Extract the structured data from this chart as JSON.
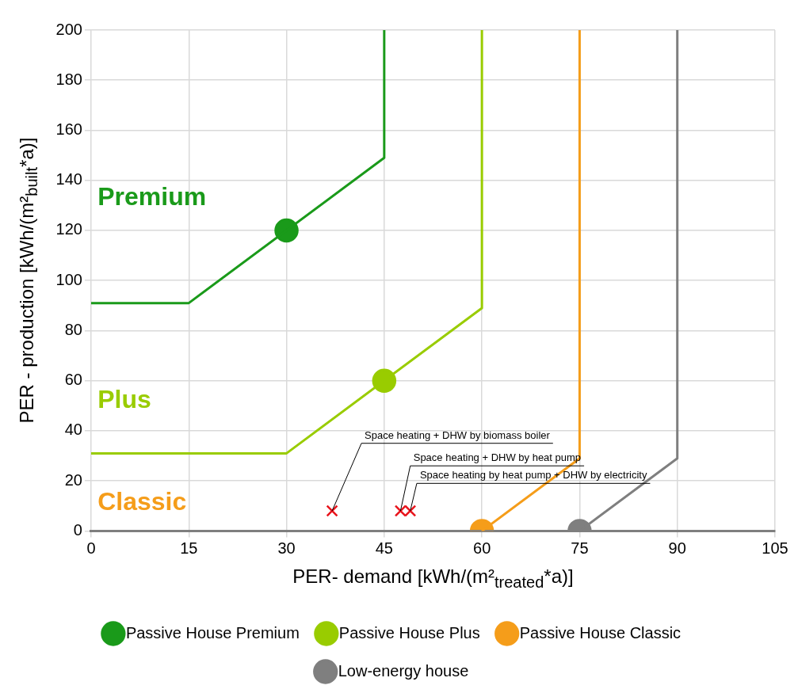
{
  "chart_data": {
    "type": "line",
    "xlabel": "PER- demand [kWh/(m²$_{treated}$*a)]",
    "ylabel": "PER - production [kWh/(m²$_{built}$*a)]",
    "xlim": [
      0,
      105
    ],
    "xticks": [
      0,
      15,
      30,
      45,
      60,
      75,
      90,
      105
    ],
    "ylim": [
      0,
      200
    ],
    "yticks": [
      0,
      20,
      40,
      60,
      80,
      100,
      120,
      140,
      160,
      180,
      200
    ],
    "grid": true,
    "legend": "bottom",
    "marker": "none",
    "line_style": "solid",
    "series": [
      {
        "name": "Passive House Premium",
        "color": "#1a9a1a",
        "x": [
          0,
          15,
          45,
          45
        ],
        "values": [
          91,
          91,
          149,
          200
        ]
      },
      {
        "name": "Passive House Plus",
        "color": "#99cc00",
        "x": [
          0,
          30,
          60,
          60
        ],
        "values": [
          31,
          31,
          89,
          200
        ]
      },
      {
        "name": "Passive House Classic",
        "color": "#f59d1a",
        "x": [
          60,
          75,
          75
        ],
        "values": [
          0,
          29,
          200
        ]
      },
      {
        "name": "Low-energy house",
        "color": "#7f7f7f",
        "x": [
          0,
          75,
          90,
          90
        ],
        "values": [
          0,
          0,
          29,
          200
        ]
      },
      {
        "type": "scatter",
        "marker": "circle",
        "color": "#1a9a1a",
        "x": [
          30
        ],
        "values": [
          120
        ]
      },
      {
        "type": "scatter",
        "marker": "circle",
        "color": "#99cc00",
        "x": [
          45
        ],
        "values": [
          60
        ]
      },
      {
        "type": "scatter",
        "marker": "circle",
        "color": "#f59d1a",
        "x": [
          60
        ],
        "values": [
          0
        ]
      },
      {
        "type": "scatter",
        "marker": "circle",
        "color": "#7f7f7f",
        "x": [
          75
        ],
        "values": [
          0
        ]
      },
      {
        "type": "scatter",
        "marker": "cross",
        "color": "#e8141c",
        "x": [
          37,
          47.5,
          49
        ],
        "values": [
          8,
          8,
          8
        ]
      }
    ],
    "annotations": [
      "Premium",
      "Plus",
      "Classic",
      {
        "text": "Space heating + DHW by biomass boiler",
        "x": 37,
        "y": 8
      },
      {
        "text": "Space heating + DHW by heat pump",
        "x": 47.5,
        "y": 8
      },
      {
        "text": "Space heating by heat pump + DHW by electricity",
        "x": 49,
        "y": 8
      }
    ]
  }
}
